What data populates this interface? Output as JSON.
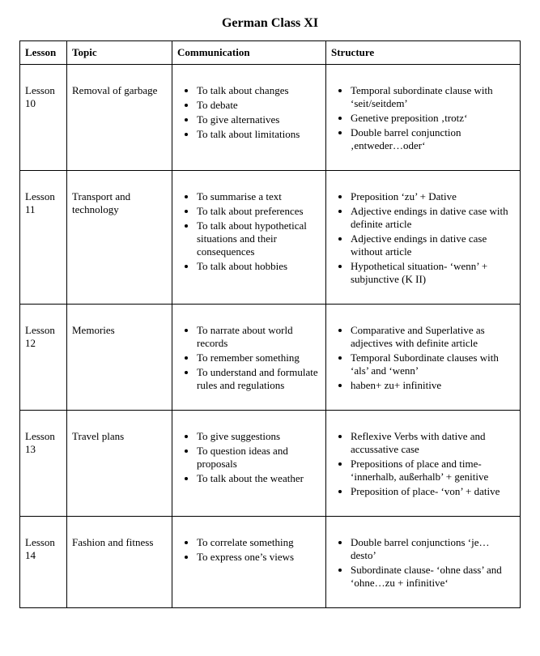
{
  "title": "German Class XI",
  "columns": [
    "Lesson",
    "Topic",
    "Communication",
    "Structure"
  ],
  "rows": [
    {
      "lesson": "Lesson 10",
      "topic": "Removal of garbage",
      "communication": [
        "To talk about changes",
        "To debate",
        "To give alternatives",
        "To talk about limitations"
      ],
      "structure": [
        "Temporal subordinate clause with ‘seit/seitdem’",
        "Genetive preposition ‚trotz‘",
        "Double barrel conjunction ‚entweder…oder‘"
      ]
    },
    {
      "lesson": "Lesson 11",
      "topic": "Transport and technology",
      "communication": [
        "To summarise a text",
        "To talk about preferences",
        "To talk about hypothetical situations and their consequences",
        "To talk about hobbies"
      ],
      "structure": [
        "Preposition ‘zu’ + Dative",
        "Adjective endings in dative case with definite article",
        "Adjective endings in dative case without article",
        "Hypothetical situation- ‘wenn’ + subjunctive (K II)"
      ]
    },
    {
      "lesson": "Lesson 12",
      "topic": "Memories",
      "communication": [
        "To narrate about world records",
        "To remember something",
        "To understand and formulate rules and regulations"
      ],
      "structure": [
        "Comparative and Superlative as adjectives with definite article",
        "Temporal Subordinate clauses with ‘als’ and ‘wenn’",
        "haben+ zu+ infinitive"
      ]
    },
    {
      "lesson": "Lesson 13",
      "topic": "Travel plans",
      "communication": [
        "To give suggestions",
        "To question ideas and proposals",
        "To talk about the weather"
      ],
      "structure": [
        "Reflexive Verbs with dative and accussative case",
        "Prepositions of place and time- ‘innerhalb, außerhalb’ + genitive",
        "Preposition of place- ‘von’ + dative"
      ]
    },
    {
      "lesson": "Lesson 14",
      "topic": "Fashion and fitness",
      "communication": [
        "To correlate something",
        "To express one’s views"
      ],
      "structure": [
        "Double barrel conjunctions ‘je…desto’",
        "Subordinate clause- ‘ohne dass’ and ‘ohne…zu + infinitive‘"
      ]
    }
  ]
}
